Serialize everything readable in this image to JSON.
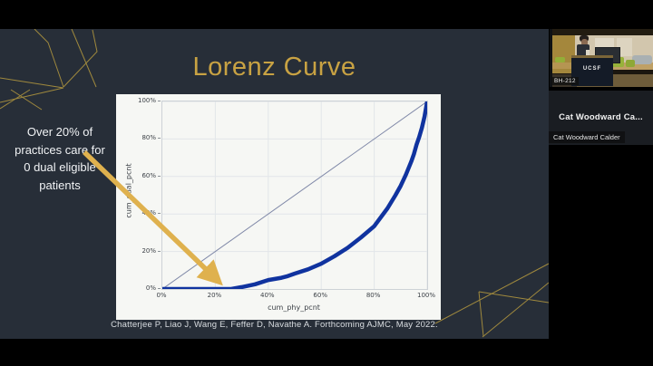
{
  "slide": {
    "title": "Lorenz Curve",
    "annotation": {
      "lines": [
        "Over 20% of",
        "practices care for",
        "0 dual eligible",
        "patients"
      ]
    },
    "citation": "Chatterjee P, Liao J, Wang E, Feffer D, Navathe A. Forthcoming AJMC, May 2022.",
    "colors": {
      "background": "#272e38",
      "title_gold": "#c8a243",
      "arrow_gold": "#dfb14e",
      "decor_gold": "#b5993f",
      "curve_blue": "#10339f",
      "equality_line": "#8089a8"
    }
  },
  "chart_data": {
    "type": "line",
    "title": "",
    "xlabel": "cum_phy_pcnt",
    "ylabel": "cum_dual_pcnt",
    "x_ticks": [
      "0%",
      "20%",
      "40%",
      "60%",
      "80%",
      "100%"
    ],
    "y_ticks": [
      "0%",
      "20%",
      "40%",
      "60%",
      "80%",
      "100%"
    ],
    "xlim": [
      0,
      100
    ],
    "ylim": [
      0,
      100
    ],
    "grid": true,
    "legend": "none",
    "series": [
      {
        "name": "line_of_equality",
        "color": "#8089a8",
        "width": 1,
        "points": [
          [
            0,
            0
          ],
          [
            100,
            100
          ]
        ]
      },
      {
        "name": "lorenz_curve",
        "color": "#10339f",
        "width": 4.5,
        "points": [
          [
            0,
            0
          ],
          [
            5,
            0
          ],
          [
            10,
            0
          ],
          [
            15,
            0
          ],
          [
            20,
            0
          ],
          [
            26,
            0
          ],
          [
            30,
            1
          ],
          [
            35,
            2.5
          ],
          [
            40,
            4.8
          ],
          [
            45,
            6
          ],
          [
            47,
            6.7
          ],
          [
            50,
            8.2
          ],
          [
            55,
            10.5
          ],
          [
            60,
            13.5
          ],
          [
            65,
            17.5
          ],
          [
            70,
            22
          ],
          [
            75,
            27.5
          ],
          [
            80,
            33.5
          ],
          [
            85,
            43
          ],
          [
            88,
            50
          ],
          [
            90,
            55
          ],
          [
            92,
            61
          ],
          [
            94,
            68
          ],
          [
            95,
            72
          ],
          [
            96,
            77
          ],
          [
            97,
            81
          ],
          [
            98,
            86
          ],
          [
            99,
            92
          ],
          [
            100,
            100
          ]
        ]
      }
    ]
  },
  "sidebar": {
    "webcam": {
      "room_label": "BH-212",
      "podium_text": "UCSF"
    },
    "participant": {
      "display_name": "Cat Woodward Ca...",
      "name_label": "Cat Woodward Calder"
    }
  }
}
